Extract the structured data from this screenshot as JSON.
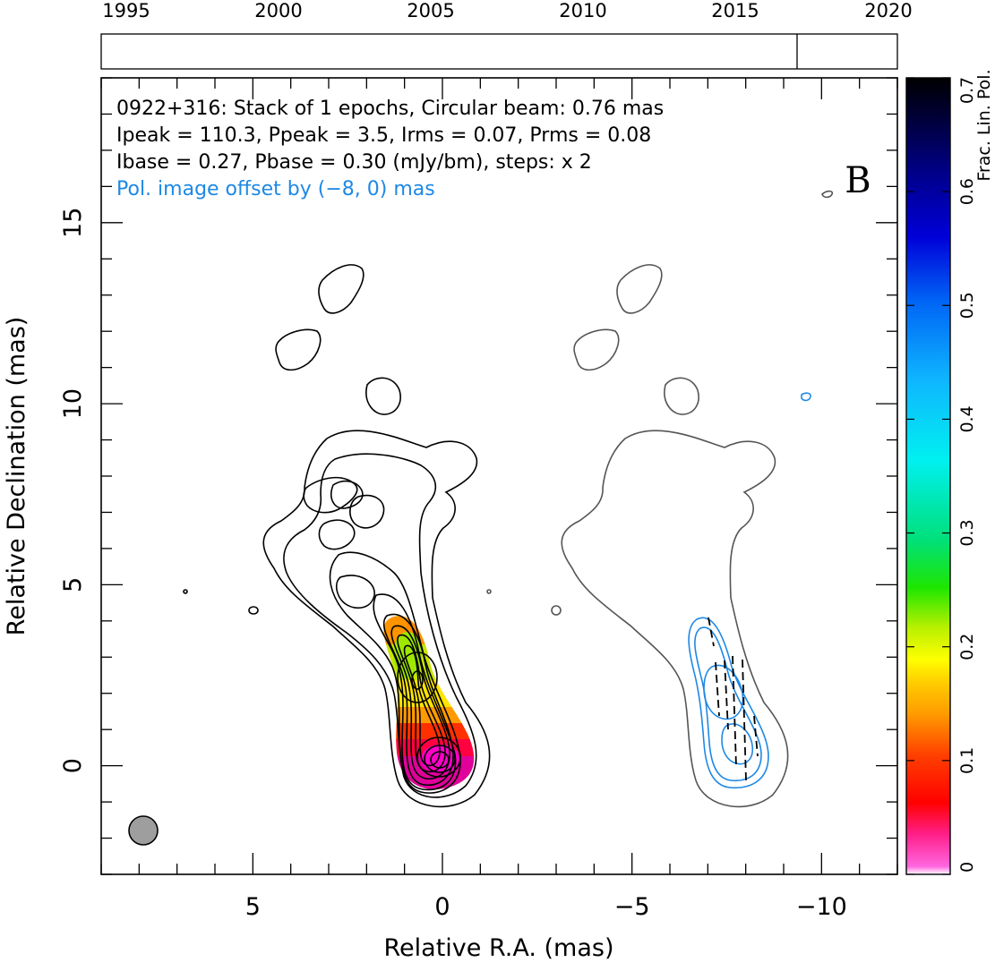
{
  "timeline": {
    "years": [
      "1995",
      "2000",
      "2005",
      "2010",
      "2015",
      "2020"
    ],
    "epoch_year": 2016.7
  },
  "header": {
    "line1": "0922+316: Stack of 1 epochs, Circular beam: 0.76 mas",
    "line2": "Ipeak = 110.3, Ppeak = 3.5, Irms = 0.07, Prms = 0.08",
    "line3": "Ibase = 0.27, Pbase = 0.30 (mJy/bm), steps: x 2",
    "line4": "Pol. image offset by (−8, 0) mas",
    "panel_letter": "B"
  },
  "axes": {
    "xlabel": "Relative R.A. (mas)",
    "ylabel": "Relative Declination (mas)",
    "colorbar_label": "Frac. Lin. Pol."
  },
  "colors": {
    "total_intensity_contour": "#000000",
    "offset_image_contour": "#555555",
    "pol_contour": "#1e88e5",
    "beam": "#9e9e9e"
  },
  "chart_data": {
    "type": "contour",
    "xlim": [
      9,
      -12
    ],
    "ylim": [
      -3,
      19
    ],
    "xticks": [
      5,
      0,
      -5,
      -10
    ],
    "xtick_labels": [
      "5",
      "0",
      "−5",
      "−10"
    ],
    "yticks": [
      0,
      5,
      10,
      15
    ],
    "ytick_labels": [
      "0",
      "5",
      "10",
      "15"
    ],
    "colorbar": {
      "range": [
        0,
        0.7
      ],
      "ticks": [
        0,
        0.1,
        0.2,
        0.3,
        0.4,
        0.5,
        0.6,
        0.7
      ],
      "tick_labels": [
        "0",
        "0.1",
        "0.2",
        "0.3",
        "0.4",
        "0.5",
        "0.6",
        "0.7"
      ]
    },
    "source": "0922+316",
    "epochs_stacked": 1,
    "beam_mas": 0.76,
    "beam_position_mas": [
      7.8,
      -1.8
    ],
    "ipeak": 110.3,
    "ppeak": 3.5,
    "irms": 0.07,
    "prms": 0.08,
    "ibase": 0.27,
    "pbase": 0.3,
    "units": "mJy/bm",
    "contour_steps": "x 2",
    "pol_offset_mas": [
      -8,
      0
    ]
  }
}
